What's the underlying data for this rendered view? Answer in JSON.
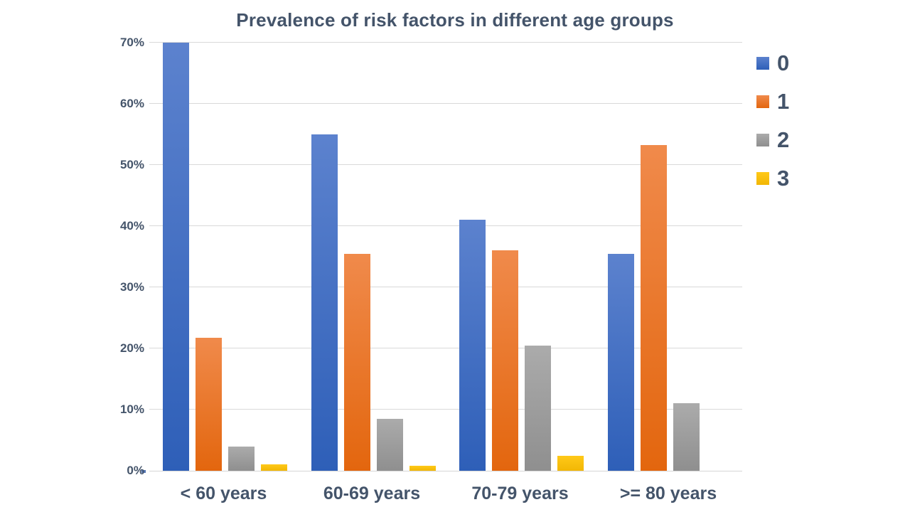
{
  "chart_data": {
    "type": "bar",
    "title": "Prevalence of risk factors in different age groups",
    "categories": [
      "< 60 years",
      "60-69 years",
      "70-79 years",
      ">= 80 years"
    ],
    "series": [
      {
        "name": "0",
        "color": "#4472c4",
        "color_top": "#5c82ce",
        "color_bottom": "#2e5fb8",
        "values": [
          70,
          55,
          41,
          35.5
        ]
      },
      {
        "name": "1",
        "color": "#ed7d31",
        "color_top": "#f08a4b",
        "color_bottom": "#e3660e",
        "values": [
          21.8,
          35.5,
          36,
          53.3
        ]
      },
      {
        "name": "2",
        "color": "#a5a5a5",
        "color_top": "#ababab",
        "color_bottom": "#8f8f8f",
        "values": [
          4,
          8.5,
          20.5,
          11
        ]
      },
      {
        "name": "3",
        "color": "#ffc000",
        "color_top": "#ffc918",
        "color_bottom": "#f2b705",
        "values": [
          1,
          0.8,
          2.5,
          0
        ]
      }
    ],
    "xlabel": "",
    "ylabel": "",
    "ylim": [
      0,
      70
    ],
    "ytick_step": 10,
    "ytick_labels": [
      "0%",
      "10%",
      "20%",
      "30%",
      "40%",
      "50%",
      "60%",
      "70%"
    ],
    "grid": true,
    "gridline_color": "#d9d9d9",
    "legend_position": "right",
    "text_color": "#44546a"
  }
}
